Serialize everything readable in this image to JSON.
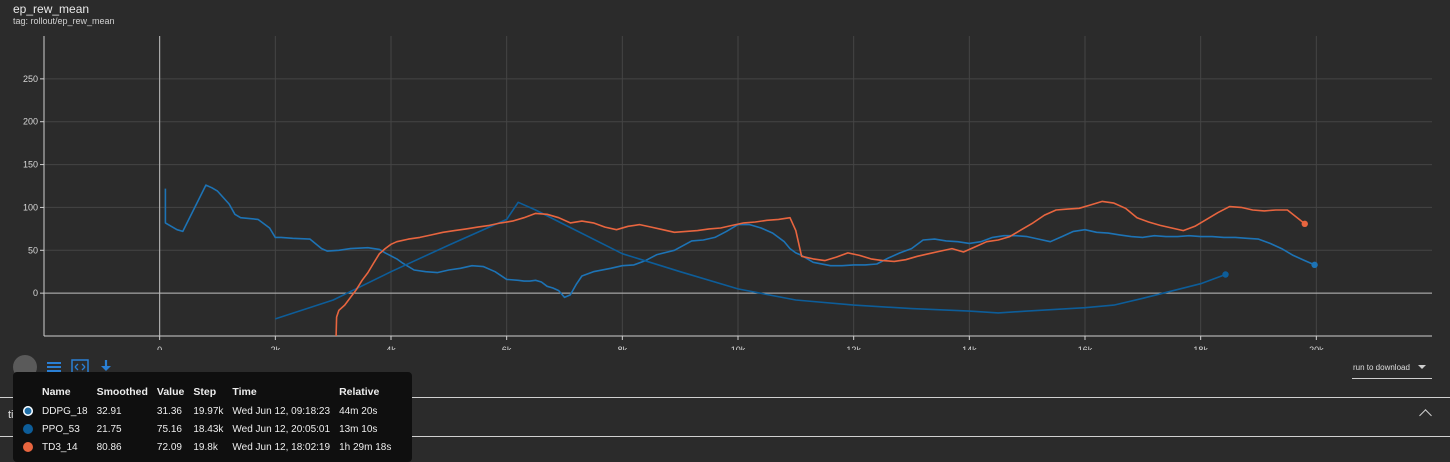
{
  "header": {
    "title": "ep_rew_mean",
    "subtitle": "tag: rollout/ep_rew_mean"
  },
  "toolbar": {
    "download_label": "run to download"
  },
  "bottom": {
    "section_label": "time"
  },
  "tooltip": {
    "columns": [
      "Name",
      "Smoothed",
      "Value",
      "Step",
      "Time",
      "Relative"
    ],
    "rows": [
      {
        "name": "DDPG_18",
        "smoothed": "32.91",
        "value": "31.36",
        "step": "19.97k",
        "time": "Wed Jun 12, 09:18:23",
        "relative": "44m 20s",
        "color": "#1f6fa8",
        "ring": "#ffffff"
      },
      {
        "name": "PPO_53",
        "smoothed": "21.75",
        "value": "75.16",
        "step": "18.43k",
        "time": "Wed Jun 12, 20:05:01",
        "relative": "13m 10s",
        "color": "#0d5d99",
        "ring": ""
      },
      {
        "name": "TD3_14",
        "smoothed": "80.86",
        "value": "72.09",
        "step": "19.8k",
        "time": "Wed Jun 12, 18:02:19",
        "relative": "1h 29m 18s",
        "color": "#e8653f",
        "ring": ""
      }
    ]
  },
  "chart_data": {
    "type": "line",
    "title": "ep_rew_mean",
    "subtitle": "tag: rollout/ep_rew_mean",
    "xlabel": "",
    "ylabel": "",
    "xlim": [
      -2000,
      22000
    ],
    "ylim": [
      -50,
      300
    ],
    "xticks": [
      0,
      2000,
      4000,
      6000,
      8000,
      10000,
      12000,
      14000,
      16000,
      18000,
      20000
    ],
    "xtick_labels": [
      "0",
      "2k",
      "4k",
      "6k",
      "8k",
      "10k",
      "12k",
      "14k",
      "16k",
      "18k",
      "20k"
    ],
    "yticks": [
      0,
      50,
      100,
      150,
      200,
      250
    ],
    "ytick_labels": [
      "0",
      "50",
      "100",
      "150",
      "200",
      "250"
    ],
    "grid": true,
    "series": [
      {
        "name": "DDPG_18",
        "color": "#1d73b5",
        "x": [
          100,
          100,
          300,
          400,
          800,
          900,
          1000,
          1200,
          1300,
          1400,
          1700,
          1900,
          2000,
          2100,
          2300,
          2600,
          2800,
          2900,
          3100,
          3300,
          3600,
          3800,
          3900,
          4100,
          4200,
          4400,
          4600,
          4800,
          5000,
          5200,
          5400,
          5600,
          5800,
          6000,
          6200,
          6300,
          6400,
          6500,
          6600,
          6700,
          6800,
          6900,
          7000,
          7100,
          7200,
          7300,
          7500,
          7800,
          8000,
          8200,
          8400,
          8600,
          8900,
          9200,
          9400,
          9600,
          9800,
          10000,
          10200,
          10400,
          10600,
          10800,
          10900,
          11000,
          11100,
          11300,
          11600,
          11800,
          12000,
          12200,
          12400,
          12600,
          12800,
          13000,
          13200,
          13400,
          13600,
          13800,
          14000,
          14200,
          14400,
          14600,
          14800,
          15000,
          15200,
          15400,
          15600,
          15800,
          16000,
          16200,
          16400,
          16600,
          16800,
          17000,
          17200,
          17400,
          17600,
          17800,
          18000,
          18200,
          18400,
          18600,
          18800,
          19000,
          19200,
          19400,
          19600,
          19800,
          19970
        ],
        "y": [
          122,
          82,
          74,
          72,
          126,
          123,
          119,
          104,
          92,
          88,
          86,
          76,
          65,
          65,
          64,
          63,
          52,
          49,
          50,
          52,
          53,
          51,
          47,
          40,
          35,
          27,
          25,
          24,
          27,
          29,
          32,
          31,
          25,
          16,
          15,
          14,
          14,
          15,
          13,
          8,
          6,
          3,
          -5,
          -2,
          10,
          20,
          25,
          29,
          32,
          33,
          38,
          45,
          50,
          61,
          62,
          65,
          72,
          80,
          80,
          76,
          70,
          60,
          52,
          47,
          44,
          36,
          32,
          32,
          33,
          33,
          34,
          41,
          47,
          52,
          62,
          63,
          61,
          60,
          58,
          60,
          65,
          67,
          67,
          66,
          63,
          60,
          66,
          72,
          74,
          71,
          70,
          68,
          66,
          65,
          67,
          66,
          66,
          67,
          66,
          66,
          65,
          65,
          64,
          63,
          58,
          52,
          44,
          38,
          33
        ]
      },
      {
        "name": "PPO_53",
        "color": "#0d5d99",
        "x": [
          2000,
          3000,
          4000,
          5000,
          6000,
          6200,
          6500,
          7000,
          8000,
          9000,
          10000,
          11000,
          12000,
          13000,
          14000,
          14500,
          15000,
          16000,
          16500,
          17000,
          18000,
          18430
        ],
        "y": [
          -30,
          -8,
          25,
          56,
          86,
          106,
          97,
          80,
          46,
          25,
          5,
          -8,
          -14,
          -18,
          -21,
          -23,
          -21,
          -17,
          -14,
          -6,
          11,
          21.75
        ]
      },
      {
        "name": "TD3_14",
        "color": "#e8653f",
        "x": [
          3050,
          3060,
          3100,
          3200,
          3300,
          3400,
          3500,
          3600,
          3700,
          3800,
          3900,
          4000,
          4100,
          4300,
          4500,
          4700,
          4900,
          5100,
          5300,
          5500,
          5700,
          5900,
          6100,
          6300,
          6500,
          6700,
          6900,
          7100,
          7300,
          7500,
          7700,
          7900,
          8100,
          8300,
          8500,
          8700,
          8900,
          9100,
          9300,
          9500,
          9700,
          9900,
          10100,
          10300,
          10500,
          10700,
          10900,
          11000,
          11100,
          11300,
          11500,
          11700,
          11900,
          12100,
          12300,
          12500,
          12700,
          12900,
          13100,
          13300,
          13500,
          13700,
          13900,
          14100,
          14300,
          14500,
          14700,
          14900,
          15100,
          15300,
          15500,
          15700,
          15900,
          16100,
          16300,
          16500,
          16700,
          16900,
          17100,
          17300,
          17500,
          17700,
          17900,
          18100,
          18300,
          18500,
          18700,
          18900,
          19100,
          19300,
          19500,
          19800
        ],
        "y": [
          -50,
          -28,
          -20,
          -14,
          -5,
          4,
          15,
          24,
          35,
          46,
          52,
          57,
          60,
          63,
          65,
          68,
          71,
          73,
          75,
          77,
          79,
          82,
          84,
          88,
          93,
          92,
          88,
          82,
          84,
          82,
          77,
          74,
          78,
          80,
          77,
          74,
          71,
          72,
          73,
          75,
          76,
          79,
          82,
          83,
          85,
          86,
          88,
          73,
          43,
          40,
          38,
          42,
          47,
          44,
          40,
          38,
          37,
          39,
          43,
          46,
          49,
          52,
          48,
          54,
          60,
          62,
          66,
          74,
          82,
          91,
          97,
          98,
          99,
          103,
          107,
          105,
          99,
          88,
          83,
          79,
          76,
          73,
          78,
          86,
          94,
          101,
          100,
          97,
          96,
          97,
          97,
          80.86
        ]
      }
    ]
  }
}
